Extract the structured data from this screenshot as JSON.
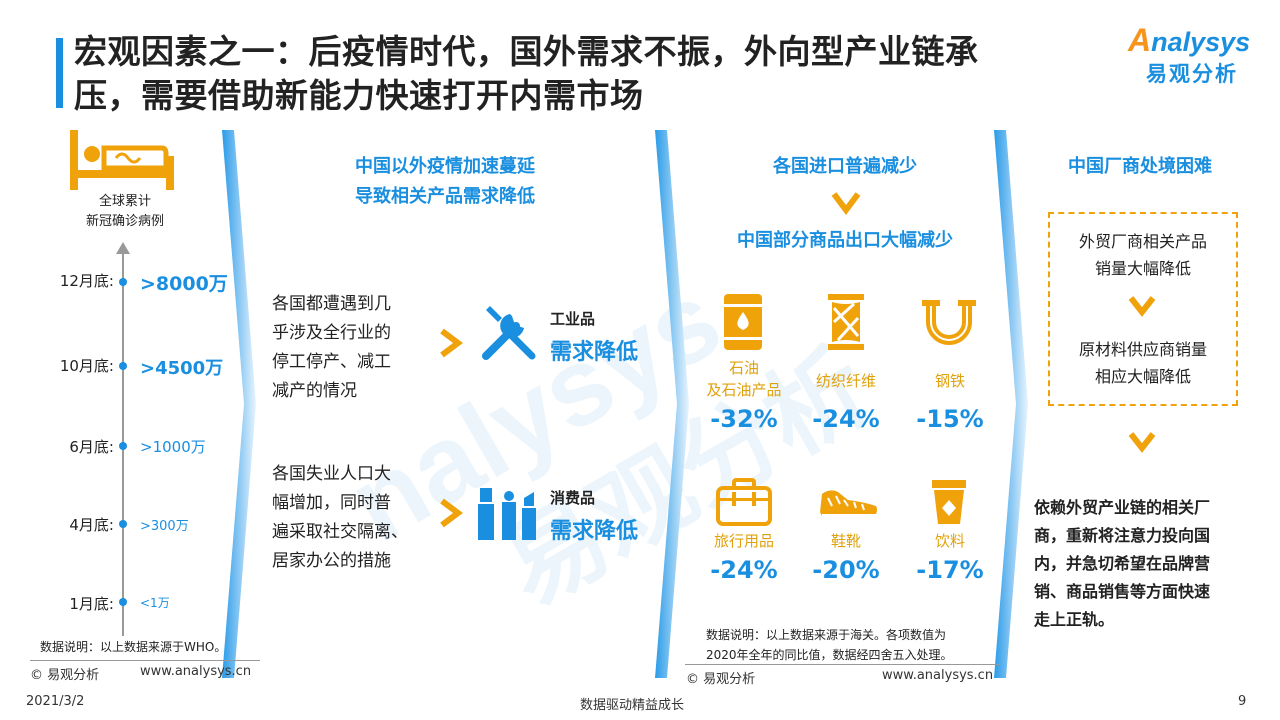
{
  "header": {
    "title_line1": "宏观因素之一：后疫情时代，国外需求不振，外向型产业链承",
    "title_line2": "压，需要借助新能力快速打开内需市场",
    "logo_en": "nalysys",
    "logo_en_initial": "A",
    "logo_cn": "易观分析"
  },
  "left": {
    "icon_label_line1": "全球累计",
    "icon_label_line2": "新冠确诊病例",
    "timeline": [
      {
        "label": "12月底:",
        "value": ">8000万"
      },
      {
        "label": "10月底:",
        "value": ">4500万"
      },
      {
        "label": "6月底:",
        "value": ">1000万"
      },
      {
        "label": "4月底:",
        "value": ">300万"
      },
      {
        "label": "1月底:",
        "value": "<1万"
      }
    ],
    "note": "数据说明：以上数据来源于WHO。"
  },
  "middle": {
    "heading_line1": "中国以外疫情加速蔓延",
    "heading_line2": "导致相关产品需求降低",
    "block1": {
      "text_line1": "各国都遭遇到几",
      "text_line2": "乎涉及全行业的",
      "text_line3": "停工停产、减工",
      "text_line4": "减产的情况",
      "cat_small": "工业品",
      "cat_big": "需求降低"
    },
    "block2": {
      "text_line1": "各国失业人口大",
      "text_line2": "幅增加，同时普",
      "text_line3": "遍采取社交隔离、",
      "text_line4": "居家办公的措施",
      "cat_small": "消费品",
      "cat_big": "需求降低"
    }
  },
  "imports": {
    "heading": "各国进口普遍减少",
    "subheading": "中国部分商品出口大幅减少",
    "products": [
      {
        "name_line1": "石油",
        "name_line2": "及石油产品",
        "pct": "-32%",
        "icon": "oil-barrel-icon"
      },
      {
        "name_line1": "纺织纤维",
        "name_line2": "",
        "pct": "-24%",
        "icon": "yarn-icon"
      },
      {
        "name_line1": "钢铁",
        "name_line2": "",
        "pct": "-15%",
        "icon": "horseshoe-icon"
      },
      {
        "name_line1": "旅行用品",
        "name_line2": "",
        "pct": "-24%",
        "icon": "suitcase-icon"
      },
      {
        "name_line1": "鞋靴",
        "name_line2": "",
        "pct": "-20%",
        "icon": "sneaker-icon"
      },
      {
        "name_line1": "饮料",
        "name_line2": "",
        "pct": "-17%",
        "icon": "cup-icon"
      }
    ],
    "note_line1": "数据说明：以上数据来源于海关。各项数值为",
    "note_line2": "2020年全年的同比值，数据经四舍五入处理。"
  },
  "right": {
    "heading": "中国厂商处境困难",
    "box_line1": "外贸厂商相关产品",
    "box_line2": "销量大幅降低",
    "box_line3": "原材料供应商销量",
    "box_line4": "相应大幅降低",
    "conclusion_line1": "依赖外贸产业链的相关厂",
    "conclusion_line2": "商，重新将注意力投向国",
    "conclusion_line3": "内，并急切希望在品牌营",
    "conclusion_line4": "销、商品销售等方面快速",
    "conclusion_line5": "走上正轨。"
  },
  "footer": {
    "copyright_left": "© 易观分析",
    "url_left": "www.analysys.cn",
    "copyright_right": "© 易观分析",
    "url_right": "www.analysys.cn",
    "date": "2021/3/2",
    "slogan": "数据驱动精益成长",
    "page": "9"
  },
  "colors": {
    "accent_blue": "#1a8fe0",
    "accent_orange": "#f0a20a"
  }
}
